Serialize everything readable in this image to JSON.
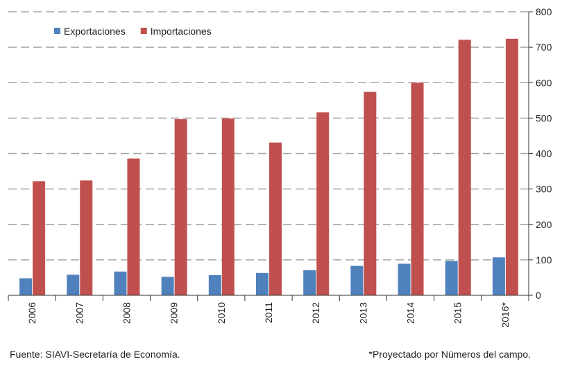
{
  "chart_data": {
    "type": "bar",
    "categories": [
      "2006",
      "2007",
      "2008",
      "2009",
      "2010",
      "2011",
      "2012",
      "2013",
      "2014",
      "2015",
      "2016*"
    ],
    "series": [
      {
        "name": "Exportaciones",
        "color": "#4f81bd",
        "values": [
          48,
          58,
          67,
          52,
          57,
          63,
          71,
          83,
          89,
          97,
          107
        ]
      },
      {
        "name": "Importaciones",
        "color": "#c0504d",
        "values": [
          322,
          324,
          386,
          497,
          499,
          431,
          516,
          574,
          600,
          721,
          724
        ]
      }
    ],
    "ylim": [
      0,
      800
    ],
    "yticks": [
      0,
      100,
      200,
      300,
      400,
      500,
      600,
      700,
      800
    ],
    "grid": true,
    "legend": "top-left",
    "source": "Fuente: SIAVI-Secretaría de Economía.",
    "note": "*Proyectado por Números del campo."
  }
}
